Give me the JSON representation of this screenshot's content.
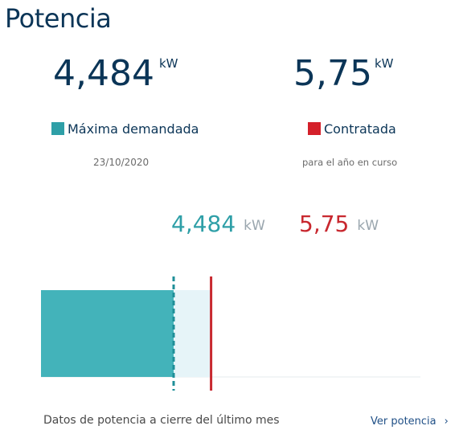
{
  "title": "Potencia",
  "maxima": {
    "value": "4,484",
    "unit": "kW",
    "legend_label": "Máxima demandada",
    "date": "23/10/2020",
    "color": "#2e9fa7"
  },
  "contratada": {
    "value": "5,75",
    "unit": "kW",
    "legend_label": "Contratada",
    "note": "para el año en curso",
    "color": "#d4202a"
  },
  "bar": {
    "max_demand_kw": 4.484,
    "contracted_kw": 5.75,
    "max_value_label": "4,484",
    "max_unit_label": "kW",
    "con_value_label": "5,75",
    "con_unit_label": "kW"
  },
  "footer": {
    "note": "Datos de potencia a cierre del último mes",
    "link_label": "Ver potencia",
    "link_icon": "chevron-right-icon"
  }
}
